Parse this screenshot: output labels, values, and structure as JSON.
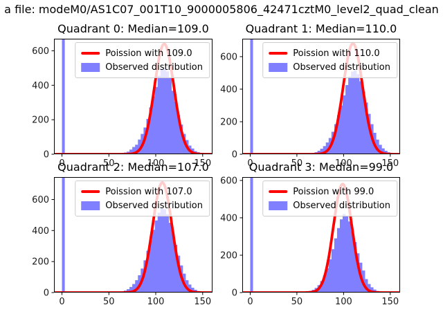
{
  "figure": {
    "suptitle": "a file: modeM0/AS1C07_001T10_9000005806_42471cztM0_level2_quad_clean",
    "background": "#ffffff"
  },
  "colors": {
    "histogram": "#7f7fff",
    "curve": "#ff0000",
    "axes": "#000000",
    "tick_label": "#1a1a1a",
    "legend_border": "#cccccc",
    "legend_bg": "rgba(255,255,255,0.8)"
  },
  "chart_data": [
    {
      "type": "histogram",
      "title": "Quadrant 0: Median=109.0",
      "median": 109.0,
      "legend": [
        "Poission with 109.0",
        "Observed distribution"
      ],
      "legend_position": "upper right",
      "grid": false,
      "xlim": [
        -8.5,
        160.5
      ],
      "ylim": [
        0,
        670
      ],
      "xticks": [
        0,
        50,
        100,
        150
      ],
      "yticks": [
        0,
        200,
        400,
        600
      ],
      "zero_spike": {
        "x0": 0,
        "x1": 3,
        "clipped_at_top": true
      },
      "bins_start": 54,
      "bin_width": 3,
      "hist_values": [
        1,
        2,
        4,
        7,
        10,
        15,
        27,
        42,
        55,
        85,
        118,
        155,
        205,
        272,
        335,
        390,
        455,
        492,
        500,
        480,
        442,
        368,
        305,
        228,
        172,
        118,
        82,
        50,
        33,
        18,
        12,
        6,
        3,
        1
      ],
      "poisson_curve": {
        "mu": 109,
        "sigma": 10.44,
        "peak": 640
      }
    },
    {
      "type": "histogram",
      "title": "Quadrant 1: Median=110.0",
      "median": 110.0,
      "legend": [
        "Poission with 110.0",
        "Observed distribution"
      ],
      "legend_position": "upper right",
      "grid": false,
      "xlim": [
        -8.5,
        160.5
      ],
      "ylim": [
        0,
        710
      ],
      "xticks": [
        0,
        50,
        100,
        150
      ],
      "yticks": [
        0,
        200,
        400,
        600
      ],
      "zero_spike": {
        "x0": 0,
        "x1": 3,
        "clipped_at_top": true
      },
      "bins_start": 54,
      "bin_width": 3,
      "hist_values": [
        1,
        2,
        3,
        5,
        8,
        13,
        21,
        34,
        50,
        72,
        100,
        138,
        185,
        240,
        300,
        362,
        425,
        478,
        508,
        515,
        492,
        448,
        385,
        318,
        248,
        185,
        132,
        90,
        58,
        36,
        21,
        12,
        6,
        3
      ],
      "poisson_curve": {
        "mu": 110,
        "sigma": 10.49,
        "peak": 681
      }
    },
    {
      "type": "histogram",
      "title": "Quadrant 2: Median=107.0",
      "median": 107.0,
      "legend": [
        "Poission with 107.0",
        "Observed distribution"
      ],
      "legend_position": "upper right",
      "grid": false,
      "xlim": [
        -8.5,
        160.5
      ],
      "ylim": [
        0,
        745
      ],
      "xticks": [
        0,
        50,
        100,
        150
      ],
      "yticks": [
        0,
        200,
        400,
        600
      ],
      "zero_spike": {
        "x0": 0,
        "x1": 3,
        "clipped_at_top": true
      },
      "bins_start": 54,
      "bin_width": 3,
      "hist_values": [
        2,
        3,
        5,
        8,
        13,
        22,
        36,
        55,
        80,
        112,
        155,
        208,
        270,
        338,
        405,
        465,
        515,
        545,
        538,
        505,
        450,
        382,
        308,
        238,
        175,
        122,
        80,
        52,
        31,
        18,
        10,
        5,
        3,
        1
      ],
      "poisson_curve": {
        "mu": 107,
        "sigma": 10.34,
        "peak": 710
      }
    },
    {
      "type": "histogram",
      "title": "Quadrant 3: Median=99.0",
      "median": 99.0,
      "legend": [
        "Poission with 99.0",
        "Observed distribution"
      ],
      "legend_position": "upper right",
      "grid": false,
      "xlim": [
        -8.5,
        160.5
      ],
      "ylim": [
        0,
        618
      ],
      "xticks": [
        0,
        50,
        100,
        150
      ],
      "yticks": [
        0,
        200,
        400,
        600
      ],
      "zero_spike": {
        "x0": 0,
        "x1": 3,
        "clipped_at_top": true
      },
      "bins_start": 54,
      "bin_width": 3,
      "hist_values": [
        2,
        3,
        5,
        9,
        15,
        25,
        40,
        62,
        92,
        130,
        178,
        232,
        290,
        345,
        392,
        420,
        412,
        380,
        330,
        270,
        210,
        160,
        118,
        72,
        46,
        28,
        16,
        9,
        5,
        3,
        2,
        1,
        1,
        0
      ],
      "poisson_curve": {
        "mu": 99,
        "sigma": 9.95,
        "peak": 581
      }
    }
  ]
}
